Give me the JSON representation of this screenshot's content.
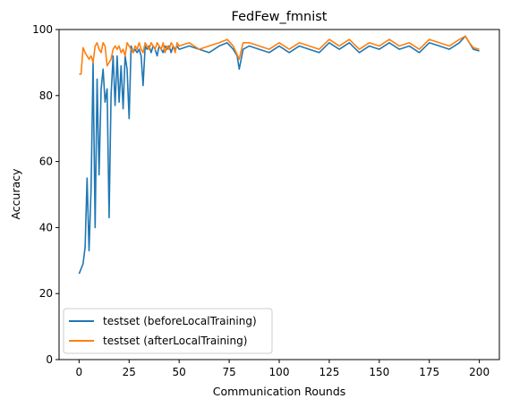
{
  "chart_data": {
    "type": "line",
    "title": "FedFew_fmnist",
    "xlabel": "Communication Rounds",
    "ylabel": "Accuracy",
    "xlim": [
      -10,
      210
    ],
    "ylim": [
      0,
      100
    ],
    "xticks": [
      0,
      25,
      50,
      75,
      100,
      125,
      150,
      175,
      200
    ],
    "yticks": [
      0,
      20,
      40,
      60,
      80,
      100
    ],
    "grid": false,
    "legend_position": "lower-left",
    "series": [
      {
        "name": "testset (beforeLocalTraining)",
        "color": "#1f77b4",
        "points": [
          [
            0,
            26
          ],
          [
            1,
            27.5
          ],
          [
            2,
            29
          ],
          [
            3,
            34
          ],
          [
            4,
            55
          ],
          [
            5,
            33
          ],
          [
            6,
            52
          ],
          [
            7,
            90
          ],
          [
            8,
            40
          ],
          [
            9,
            85
          ],
          [
            10,
            56
          ],
          [
            11,
            82
          ],
          [
            12,
            88
          ],
          [
            13,
            78
          ],
          [
            14,
            82
          ],
          [
            15,
            43
          ],
          [
            16,
            80
          ],
          [
            17,
            92
          ],
          [
            18,
            77
          ],
          [
            19,
            92
          ],
          [
            20,
            78
          ],
          [
            21,
            89
          ],
          [
            22,
            76
          ],
          [
            23,
            92
          ],
          [
            24,
            88
          ],
          [
            25,
            73
          ],
          [
            26,
            95
          ],
          [
            27,
            93
          ],
          [
            28,
            94
          ],
          [
            29,
            93
          ],
          [
            30,
            94
          ],
          [
            31,
            92
          ],
          [
            32,
            83
          ],
          [
            33,
            95
          ],
          [
            34,
            94
          ],
          [
            35,
            95
          ],
          [
            36,
            93
          ],
          [
            37,
            95
          ],
          [
            38,
            94
          ],
          [
            39,
            92
          ],
          [
            40,
            95
          ],
          [
            41,
            94
          ],
          [
            42,
            93
          ],
          [
            43,
            95
          ],
          [
            44,
            94
          ],
          [
            45,
            95
          ],
          [
            46,
            93
          ],
          [
            47,
            95
          ],
          [
            48,
            94
          ],
          [
            49,
            95
          ],
          [
            50,
            94
          ],
          [
            55,
            95
          ],
          [
            60,
            94
          ],
          [
            65,
            93
          ],
          [
            70,
            95
          ],
          [
            74,
            96
          ],
          [
            77,
            94
          ],
          [
            79,
            92
          ],
          [
            80,
            88
          ],
          [
            82,
            94
          ],
          [
            85,
            95
          ],
          [
            90,
            94
          ],
          [
            95,
            93
          ],
          [
            100,
            95
          ],
          [
            105,
            93
          ],
          [
            110,
            95
          ],
          [
            115,
            94
          ],
          [
            120,
            93
          ],
          [
            125,
            96
          ],
          [
            130,
            94
          ],
          [
            135,
            96
          ],
          [
            140,
            93
          ],
          [
            145,
            95
          ],
          [
            150,
            94
          ],
          [
            155,
            96
          ],
          [
            160,
            94
          ],
          [
            165,
            95
          ],
          [
            170,
            93
          ],
          [
            175,
            96
          ],
          [
            180,
            95
          ],
          [
            185,
            94
          ],
          [
            190,
            96
          ],
          [
            193,
            98
          ],
          [
            195,
            96
          ],
          [
            197,
            94
          ],
          [
            200,
            93.5
          ]
        ]
      },
      {
        "name": "testset (afterLocalTraining)",
        "color": "#ff7f0e",
        "points": [
          [
            0,
            86.5
          ],
          [
            1,
            86.5
          ],
          [
            2,
            94.5
          ],
          [
            3,
            93
          ],
          [
            4,
            92
          ],
          [
            5,
            91
          ],
          [
            6,
            92
          ],
          [
            7,
            90
          ],
          [
            8,
            95
          ],
          [
            9,
            96
          ],
          [
            10,
            94
          ],
          [
            11,
            93
          ],
          [
            12,
            96
          ],
          [
            13,
            95
          ],
          [
            14,
            89
          ],
          [
            15,
            90
          ],
          [
            16,
            91
          ],
          [
            17,
            94
          ],
          [
            18,
            95
          ],
          [
            19,
            94
          ],
          [
            20,
            95
          ],
          [
            21,
            93
          ],
          [
            22,
            94
          ],
          [
            23,
            92
          ],
          [
            24,
            96
          ],
          [
            25,
            95
          ],
          [
            26,
            94
          ],
          [
            27,
            93
          ],
          [
            28,
            95
          ],
          [
            29,
            94
          ],
          [
            30,
            96
          ],
          [
            31,
            94
          ],
          [
            32,
            93
          ],
          [
            33,
            96
          ],
          [
            34,
            95
          ],
          [
            35,
            94
          ],
          [
            36,
            96
          ],
          [
            37,
            95
          ],
          [
            38,
            94
          ],
          [
            39,
            96
          ],
          [
            40,
            95
          ],
          [
            41,
            94
          ],
          [
            42,
            96
          ],
          [
            43,
            93
          ],
          [
            44,
            95
          ],
          [
            45,
            94
          ],
          [
            46,
            96
          ],
          [
            47,
            95
          ],
          [
            48,
            93
          ],
          [
            49,
            96
          ],
          [
            50,
            95
          ],
          [
            55,
            96
          ],
          [
            60,
            94
          ],
          [
            65,
            95
          ],
          [
            70,
            96
          ],
          [
            74,
            97
          ],
          [
            77,
            95
          ],
          [
            80,
            91
          ],
          [
            82,
            96
          ],
          [
            85,
            96
          ],
          [
            90,
            95
          ],
          [
            95,
            94
          ],
          [
            100,
            96
          ],
          [
            105,
            94
          ],
          [
            110,
            96
          ],
          [
            115,
            95
          ],
          [
            120,
            94
          ],
          [
            125,
            97
          ],
          [
            130,
            95
          ],
          [
            135,
            97
          ],
          [
            140,
            94
          ],
          [
            145,
            96
          ],
          [
            150,
            95
          ],
          [
            155,
            97
          ],
          [
            160,
            95
          ],
          [
            165,
            96
          ],
          [
            170,
            94
          ],
          [
            175,
            97
          ],
          [
            180,
            96
          ],
          [
            185,
            95
          ],
          [
            190,
            97
          ],
          [
            193,
            98
          ],
          [
            195,
            96
          ],
          [
            197,
            94.5
          ],
          [
            200,
            94
          ]
        ]
      }
    ]
  }
}
